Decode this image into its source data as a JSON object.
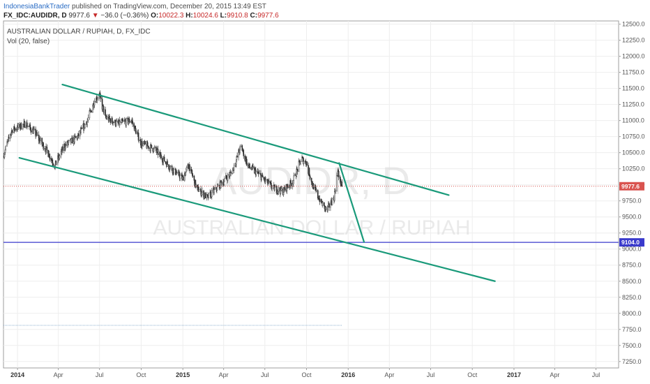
{
  "header": {
    "author": "IndonesiaBankTrader",
    "published": "published on TradingView.com, December 20, 2015 13:49 EST",
    "symbol": "FX_IDC:AUDIDR, D",
    "last": "9977.6",
    "arrow": "▼",
    "change": "−36.0 (−0.36%)",
    "o_label": "O:",
    "o_value": "10022.3",
    "h_label": "H:",
    "h_value": "10024.6",
    "l_label": "L:",
    "l_value": "9910.8",
    "c_label": "C:",
    "c_value": "9977.6"
  },
  "legend": {
    "title": "AUSTRALIAN DOLLAR / RUPIAH, D, FX_IDC",
    "indicator": "Vol (20, false)"
  },
  "watermark": {
    "ticker": "AUDIDR, D",
    "name": "AUSTRALIAN DOLLAR / RUPIAH"
  },
  "colors": {
    "trendline": "#1a9a7a",
    "price_line": "#d9534f",
    "horizontal_line": "#3a3acc",
    "up_candle": "#535353",
    "down_candle": "#2a2a2a",
    "volume_line": "#8fb0d0"
  },
  "chart_data": {
    "type": "candlestick",
    "title": "AUSTRALIAN DOLLAR / RUPIAH, D, FX_IDC",
    "x_axis": {
      "start": "2013-12-01",
      "end": "2017-08-20",
      "ticks": [
        {
          "date": "2014-01-01",
          "label": "2014",
          "bold": true
        },
        {
          "date": "2014-04-01",
          "label": "Apr",
          "bold": false
        },
        {
          "date": "2014-07-01",
          "label": "Jul",
          "bold": false
        },
        {
          "date": "2014-10-01",
          "label": "Oct",
          "bold": false
        },
        {
          "date": "2015-01-01",
          "label": "2015",
          "bold": true
        },
        {
          "date": "2015-04-01",
          "label": "Apr",
          "bold": false
        },
        {
          "date": "2015-07-01",
          "label": "Jul",
          "bold": false
        },
        {
          "date": "2015-10-01",
          "label": "Oct",
          "bold": false
        },
        {
          "date": "2016-01-01",
          "label": "2016",
          "bold": true
        },
        {
          "date": "2016-04-01",
          "label": "Apr",
          "bold": false
        },
        {
          "date": "2016-07-01",
          "label": "Jul",
          "bold": false
        },
        {
          "date": "2016-10-01",
          "label": "Oct",
          "bold": false
        },
        {
          "date": "2017-01-01",
          "label": "2017",
          "bold": true
        },
        {
          "date": "2017-04-01",
          "label": "Apr",
          "bold": false
        },
        {
          "date": "2017-07-01",
          "label": "Jul",
          "bold": false
        }
      ]
    },
    "y_axis": {
      "min": 7150,
      "max": 12550,
      "ticks": [
        12500,
        12250,
        12000,
        11750,
        11500,
        11250,
        11000,
        10750,
        10500,
        10250,
        10000,
        9750,
        9500,
        9250,
        9000,
        8750,
        8500,
        8250,
        8000,
        7750,
        7500,
        7250
      ],
      "tick_labels": [
        "12500.0",
        "12250.0",
        "12000.0",
        "11750.0",
        "11500.0",
        "11250.0",
        "11000.0",
        "10750.0",
        "10500.0",
        "10250.0",
        "10000.0",
        "9750.0",
        "9500.0",
        "9250.0",
        "9000.0",
        "8750.0",
        "8500.0",
        "8250.0",
        "8000.0",
        "7750.0",
        "7500.0",
        "7250.0"
      ]
    },
    "last_price": 9977.6,
    "last_price_label": "9977.6",
    "horizontal_level": 9104.0,
    "horizontal_level_label": "9104.0",
    "price_path": [
      {
        "date": "2013-12-01",
        "value": 10450
      },
      {
        "date": "2013-12-20",
        "value": 10850
      },
      {
        "date": "2014-01-20",
        "value": 10950
      },
      {
        "date": "2014-02-10",
        "value": 10800
      },
      {
        "date": "2014-03-10",
        "value": 10500
      },
      {
        "date": "2014-03-25",
        "value": 10300
      },
      {
        "date": "2014-04-15",
        "value": 10600
      },
      {
        "date": "2014-05-15",
        "value": 10750
      },
      {
        "date": "2014-06-05",
        "value": 11000
      },
      {
        "date": "2014-06-20",
        "value": 11300
      },
      {
        "date": "2014-07-01",
        "value": 11400
      },
      {
        "date": "2014-07-15",
        "value": 11050
      },
      {
        "date": "2014-08-10",
        "value": 10950
      },
      {
        "date": "2014-09-10",
        "value": 11000
      },
      {
        "date": "2014-10-01",
        "value": 10650
      },
      {
        "date": "2014-11-01",
        "value": 10550
      },
      {
        "date": "2014-12-01",
        "value": 10300
      },
      {
        "date": "2015-01-01",
        "value": 10100
      },
      {
        "date": "2015-01-15",
        "value": 10300
      },
      {
        "date": "2015-02-01",
        "value": 9950
      },
      {
        "date": "2015-02-25",
        "value": 9800
      },
      {
        "date": "2015-03-25",
        "value": 10000
      },
      {
        "date": "2015-04-20",
        "value": 10200
      },
      {
        "date": "2015-05-10",
        "value": 10600
      },
      {
        "date": "2015-05-25",
        "value": 10300
      },
      {
        "date": "2015-06-20",
        "value": 10150
      },
      {
        "date": "2015-07-20",
        "value": 9950
      },
      {
        "date": "2015-08-10",
        "value": 9900
      },
      {
        "date": "2015-09-01",
        "value": 10050
      },
      {
        "date": "2015-09-20",
        "value": 10400
      },
      {
        "date": "2015-10-01",
        "value": 10350
      },
      {
        "date": "2015-10-15",
        "value": 10000
      },
      {
        "date": "2015-11-01",
        "value": 9750
      },
      {
        "date": "2015-11-15",
        "value": 9600
      },
      {
        "date": "2015-12-01",
        "value": 9800
      },
      {
        "date": "2015-12-10",
        "value": 10200
      },
      {
        "date": "2015-12-18",
        "value": 9977.6
      }
    ],
    "trendlines": [
      {
        "from": {
          "date": "2014-04-10",
          "value": 11560
        },
        "to": {
          "date": "2016-08-10",
          "value": 9840
        }
      },
      {
        "from": {
          "date": "2014-01-05",
          "value": 10420
        },
        "to": {
          "date": "2016-11-20",
          "value": 8500
        }
      },
      {
        "from": {
          "date": "2015-12-12",
          "value": 10340
        },
        "to": {
          "date": "2016-02-05",
          "value": 9110
        }
      }
    ]
  }
}
